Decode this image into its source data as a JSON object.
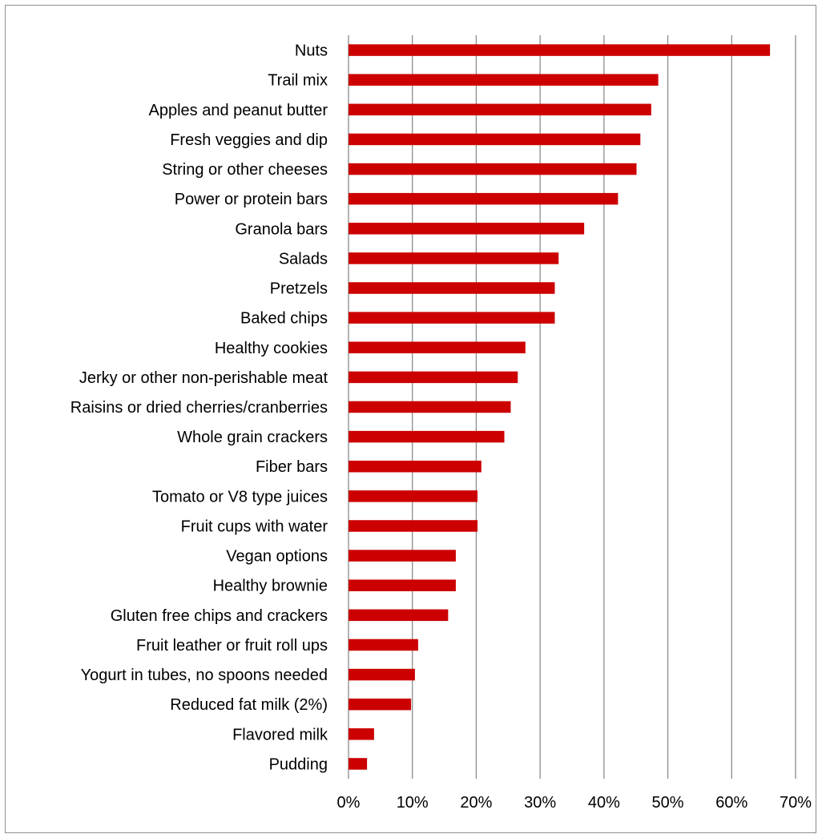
{
  "chart_data": {
    "type": "bar",
    "orientation": "horizontal",
    "title": "",
    "xlabel": "",
    "ylabel": "",
    "categories": [
      "Nuts",
      "Trail mix",
      "Apples and peanut butter",
      "Fresh veggies and dip",
      "String or other cheeses",
      "Power or protein bars",
      "Granola bars",
      "Salads",
      "Pretzels",
      "Baked chips",
      "Healthy cookies",
      "Jerky or other non-perishable meat",
      "Raisins or dried cherries/cranberries",
      "Whole grain crackers",
      "Fiber bars",
      "Tomato or V8 type juices",
      "Fruit cups with water",
      "Vegan options",
      "Healthy brownie",
      "Gluten free chips and crackers",
      "Fruit leather or fruit roll ups",
      "Yogurt in tubes, no spoons needed",
      "Reduced fat milk (2%)",
      "Flavored milk",
      "Pudding"
    ],
    "values": [
      66,
      48.5,
      47.4,
      45.7,
      45.1,
      42.2,
      36.9,
      32.9,
      32.3,
      32.3,
      27.7,
      26.5,
      25.4,
      24.4,
      20.8,
      20.2,
      20.2,
      16.8,
      16.8,
      15.6,
      10.9,
      10.4,
      9.8,
      4.0,
      2.9
    ],
    "xlim": [
      0,
      70
    ],
    "xticks": [
      "0%",
      "10%",
      "20%",
      "30%",
      "40%",
      "50%",
      "60%",
      "70%"
    ],
    "grid": "vertical",
    "legend": "none",
    "bar_color": "#cc0000",
    "grid_color": "#8c8c8c"
  }
}
